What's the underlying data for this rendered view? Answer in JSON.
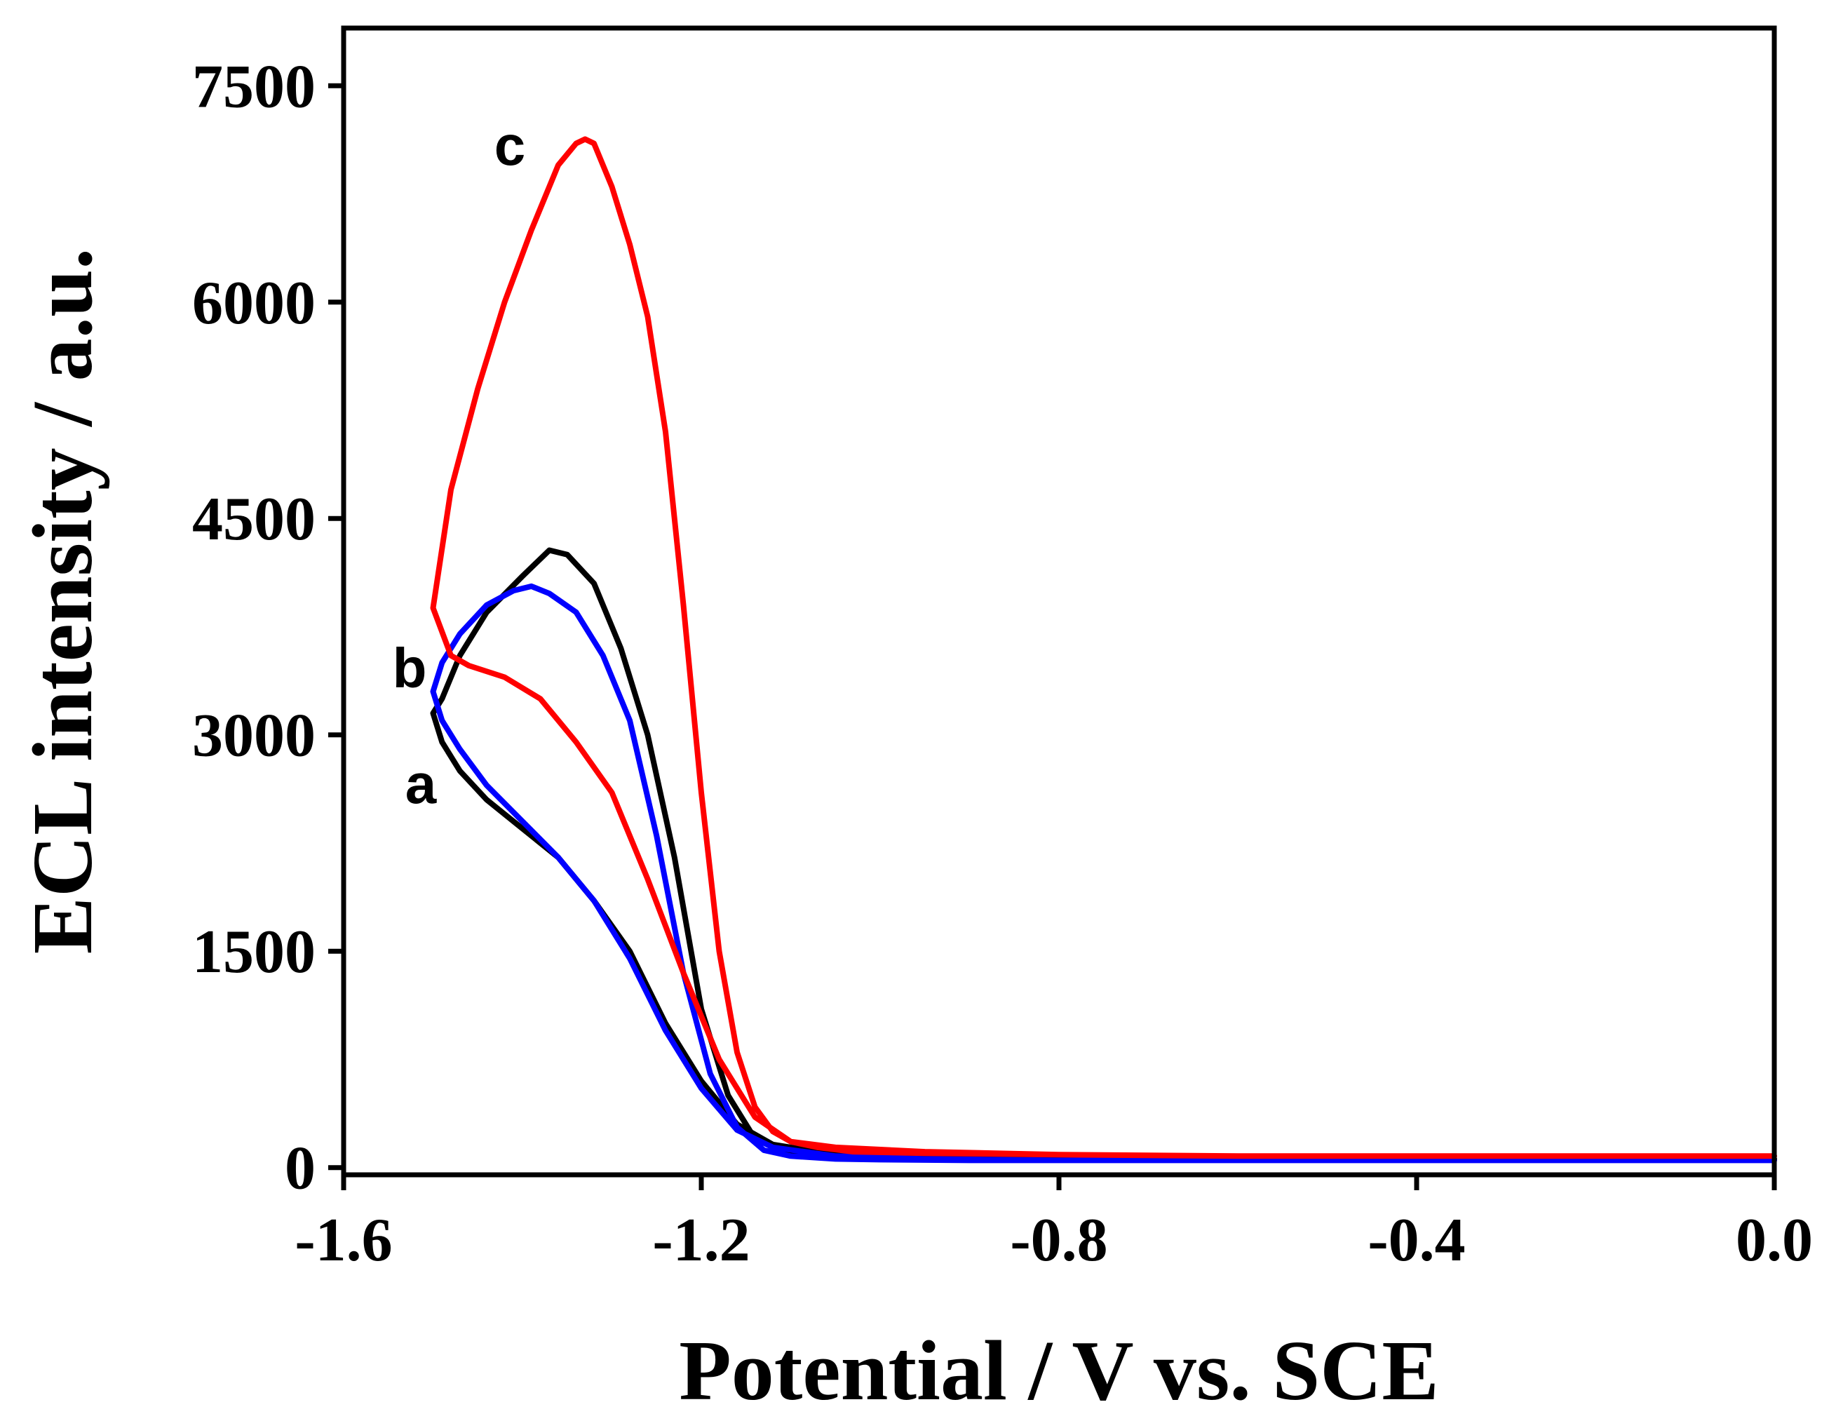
{
  "chart_data": {
    "type": "line",
    "title": "",
    "xlabel": "Potential / V vs. SCE",
    "ylabel": "ECL intensity / a.u.",
    "xlim": [
      -1.6,
      0.0
    ],
    "ylim": [
      -50,
      7900
    ],
    "xticks": [
      -1.6,
      -1.2,
      -0.8,
      -0.4,
      0.0
    ],
    "xtick_labels": [
      "-1.6",
      "-1.2",
      "-0.8",
      "-0.4",
      "0.0"
    ],
    "yticks": [
      0,
      1500,
      3000,
      4500,
      6000,
      7500
    ],
    "ytick_labels": [
      "0",
      "1500",
      "3000",
      "4500",
      "6000",
      "7500"
    ],
    "grid": false,
    "legend": "none",
    "series": [
      {
        "name": "a",
        "color": "#000000",
        "x": [
          0.0,
          -0.2,
          -0.4,
          -0.6,
          -0.8,
          -0.95,
          -1.05,
          -1.12,
          -1.16,
          -1.2,
          -1.24,
          -1.28,
          -1.32,
          -1.36,
          -1.4,
          -1.44,
          -1.47,
          -1.49,
          -1.5,
          -1.49,
          -1.47,
          -1.44,
          -1.4,
          -1.37,
          -1.35,
          -1.32,
          -1.29,
          -1.26,
          -1.23,
          -1.2,
          -1.17,
          -1.14,
          -1.1,
          -1.05,
          -1.0,
          -0.9,
          -0.8,
          -0.6,
          -0.4,
          -0.2,
          0.0
        ],
        "y": [
          60,
          60,
          60,
          60,
          60,
          70,
          90,
          160,
          300,
          600,
          1000,
          1500,
          1850,
          2150,
          2350,
          2550,
          2750,
          2950,
          3150,
          3250,
          3550,
          3850,
          4100,
          4280,
          4250,
          4050,
          3600,
          3000,
          2150,
          1100,
          500,
          200,
          100,
          75,
          65,
          60,
          60,
          60,
          60,
          60,
          60
        ]
      },
      {
        "name": "b",
        "color": "#0000ff",
        "x": [
          0.0,
          -0.2,
          -0.4,
          -0.6,
          -0.8,
          -0.95,
          -1.05,
          -1.12,
          -1.16,
          -1.2,
          -1.24,
          -1.28,
          -1.32,
          -1.36,
          -1.4,
          -1.44,
          -1.47,
          -1.49,
          -1.5,
          -1.49,
          -1.47,
          -1.44,
          -1.41,
          -1.39,
          -1.37,
          -1.34,
          -1.31,
          -1.28,
          -1.25,
          -1.22,
          -1.19,
          -1.16,
          -1.13,
          -1.1,
          -1.05,
          -1.0,
          -0.9,
          -0.8,
          -0.6,
          -0.4,
          -0.2,
          0.0
        ],
        "y": [
          50,
          50,
          50,
          50,
          50,
          60,
          80,
          140,
          260,
          550,
          950,
          1450,
          1850,
          2150,
          2400,
          2650,
          2900,
          3100,
          3300,
          3500,
          3700,
          3900,
          4000,
          4030,
          3980,
          3850,
          3550,
          3100,
          2300,
          1350,
          650,
          280,
          120,
          80,
          60,
          55,
          50,
          50,
          50,
          50,
          50,
          50
        ]
      },
      {
        "name": "c",
        "color": "#ff0000",
        "x": [
          0.0,
          -0.2,
          -0.4,
          -0.6,
          -0.8,
          -0.95,
          -1.05,
          -1.1,
          -1.14,
          -1.18,
          -1.22,
          -1.26,
          -1.3,
          -1.34,
          -1.38,
          -1.42,
          -1.46,
          -1.48,
          -1.5,
          -1.48,
          -1.45,
          -1.42,
          -1.39,
          -1.36,
          -1.34,
          -1.33,
          -1.32,
          -1.3,
          -1.28,
          -1.26,
          -1.24,
          -1.22,
          -1.2,
          -1.18,
          -1.16,
          -1.14,
          -1.12,
          -1.1,
          -1.07,
          -1.03,
          -0.95,
          -0.8,
          -0.6,
          -0.4,
          -0.2,
          0.0
        ],
        "y": [
          80,
          80,
          80,
          80,
          90,
          110,
          140,
          180,
          350,
          750,
          1350,
          2000,
          2600,
          2950,
          3250,
          3400,
          3480,
          3550,
          3880,
          4700,
          5400,
          6000,
          6500,
          6950,
          7100,
          7130,
          7100,
          6800,
          6400,
          5900,
          5100,
          3900,
          2600,
          1500,
          800,
          420,
          250,
          180,
          140,
          110,
          100,
          90,
          80,
          80,
          80,
          80
        ]
      }
    ],
    "annotations": [
      "a",
      "b",
      "c"
    ]
  }
}
